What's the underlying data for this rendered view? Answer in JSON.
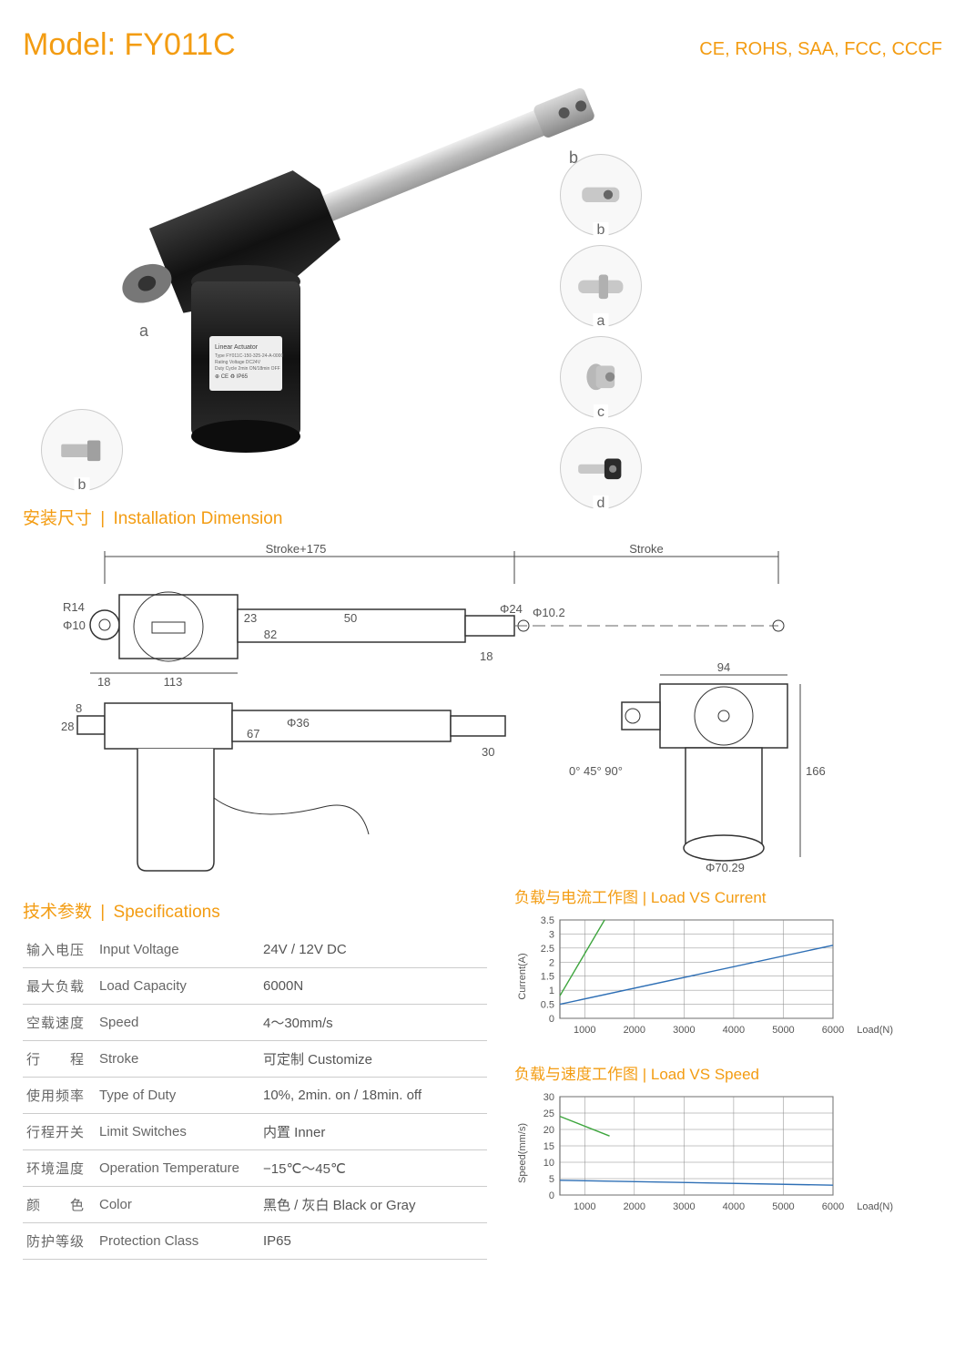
{
  "header": {
    "model_prefix": "Model: ",
    "model_code": "FY011C",
    "certs": "CE, ROHS, SAA, FCC, CCCF"
  },
  "product_labels": {
    "a": "a",
    "b": "b",
    "c": "c",
    "d": "d"
  },
  "sections": {
    "install_cn": "安装尺寸",
    "install_en": "Installation Dimension",
    "specs_cn": "技术参数",
    "specs_en": "Specifications",
    "chart1_cn": "负载与电流工作图",
    "chart1_en": "Load VS Current",
    "chart2_cn": "负载与速度工作图",
    "chart2_en": "Load VS Speed"
  },
  "drawing_labels": {
    "stroke_plus": "Stroke+175",
    "stroke": "Stroke",
    "phi102": "Φ10.2",
    "r14": "R14",
    "phi10": "Φ10",
    "d18": "18",
    "d113": "113",
    "d23": "23",
    "d82": "82",
    "d50": "50",
    "d24": "Φ24",
    "d8": "8",
    "d28": "28",
    "d67": "67",
    "d36": "Φ36",
    "d30": "30",
    "d18b": "18",
    "angles": "0°  45°  90°",
    "d94": "94",
    "d166": "166",
    "phi7029": "Φ70.29"
  },
  "specs": [
    {
      "cn": "输入电压",
      "en": "Input Voltage",
      "val": "24V / 12V DC"
    },
    {
      "cn": "最大负载",
      "en": "Load Capacity",
      "val": "6000N"
    },
    {
      "cn": "空载速度",
      "en": "Speed",
      "val": "4～30mm/s"
    },
    {
      "cn": "行　　程",
      "en": "Stroke",
      "val": "可定制 Customize"
    },
    {
      "cn": "使用频率",
      "en": "Type of Duty",
      "val": "10%, 2min. on / 18min. off"
    },
    {
      "cn": "行程开关",
      "en": "Limit Switches",
      "val": "内置 Inner"
    },
    {
      "cn": "环境温度",
      "en": "Operation Temperature",
      "val": "−15℃～45℃"
    },
    {
      "cn": "颜　　色",
      "en": "Color",
      "val": "黑色 / 灰白 Black or Gray"
    },
    {
      "cn": "防护等级",
      "en": "Protection Class",
      "val": "IP65"
    }
  ],
  "chart_current": {
    "type": "line",
    "xlabel": "Load(N)",
    "ylabel": "Current(A)",
    "xticks": [
      1000,
      2000,
      3000,
      4000,
      5000,
      6000
    ],
    "yticks": [
      0,
      0.5,
      1,
      1.5,
      2,
      2.5,
      3,
      3.5
    ],
    "xlim": [
      500,
      6000
    ],
    "ylim": [
      0,
      3.5
    ],
    "grid_color": "#888888",
    "series": [
      {
        "color": "#3da53d",
        "width": 1.4,
        "points": [
          [
            500,
            0.8
          ],
          [
            1400,
            3.5
          ]
        ]
      },
      {
        "color": "#2e6fb5",
        "width": 1.4,
        "points": [
          [
            500,
            0.5
          ],
          [
            6000,
            2.6
          ]
        ]
      }
    ],
    "axis_fontsize": 10,
    "label_fontsize": 11
  },
  "chart_speed": {
    "type": "line",
    "xlabel": "Load(N)",
    "ylabel": "Speed(mm/s)",
    "xticks": [
      1000,
      2000,
      3000,
      4000,
      5000,
      6000
    ],
    "yticks": [
      0,
      5,
      10,
      15,
      20,
      25,
      30
    ],
    "xlim": [
      500,
      6000
    ],
    "ylim": [
      0,
      30
    ],
    "grid_color": "#888888",
    "series": [
      {
        "color": "#3da53d",
        "width": 1.4,
        "points": [
          [
            500,
            24
          ],
          [
            1500,
            18
          ]
        ]
      },
      {
        "color": "#2e6fb5",
        "width": 1.4,
        "points": [
          [
            500,
            4.5
          ],
          [
            6000,
            3.0
          ]
        ]
      }
    ],
    "axis_fontsize": 10,
    "label_fontsize": 11
  },
  "colors": {
    "accent": "#f39c12",
    "body_black": "#1a1a1a",
    "rod_silver": "#cfcfcf",
    "rod_dark": "#9a9a9a"
  }
}
